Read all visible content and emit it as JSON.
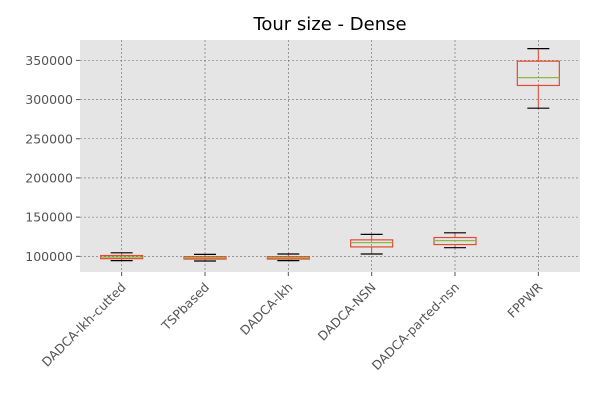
{
  "chart_data": {
    "type": "boxplot",
    "title": "Tour size - Dense",
    "xlabel": "",
    "ylabel": "",
    "ylim": [
      80000,
      376000
    ],
    "yticks": [
      100000,
      150000,
      200000,
      250000,
      300000,
      350000
    ],
    "ytick_labels": [
      "100000",
      "150000",
      "200000",
      "250000",
      "300000",
      "350000"
    ],
    "grid": true,
    "categories": [
      "DADCA-lkh-cutted",
      "TSPbased",
      "DADCA-lkh",
      "DADCA-NSN",
      "DADCA-parted-nsn",
      "FPPWR"
    ],
    "boxes": [
      {
        "whisker_low": 94500,
        "q1": 97000,
        "median": 99000,
        "q3": 101000,
        "whisker_high": 104500
      },
      {
        "whisker_low": 94000,
        "q1": 96500,
        "median": 98000,
        "q3": 99500,
        "whisker_high": 102500
      },
      {
        "whisker_low": 94500,
        "q1": 96500,
        "median": 98000,
        "q3": 99500,
        "whisker_high": 103000
      },
      {
        "whisker_low": 103000,
        "q1": 112000,
        "median": 117500,
        "q3": 121000,
        "whisker_high": 128000
      },
      {
        "whisker_low": 111000,
        "q1": 115000,
        "median": 120000,
        "q3": 124000,
        "whisker_high": 130000
      },
      {
        "whisker_low": 289000,
        "q1": 318000,
        "median": 328000,
        "q3": 349000,
        "whisker_high": 365000
      }
    ],
    "colors": {
      "plot_background": "#e5e5e5",
      "box": "#e24a33",
      "median": "#8eba42",
      "whisker": "#000000",
      "grid": "#666666",
      "tick_label": "#555555"
    }
  }
}
